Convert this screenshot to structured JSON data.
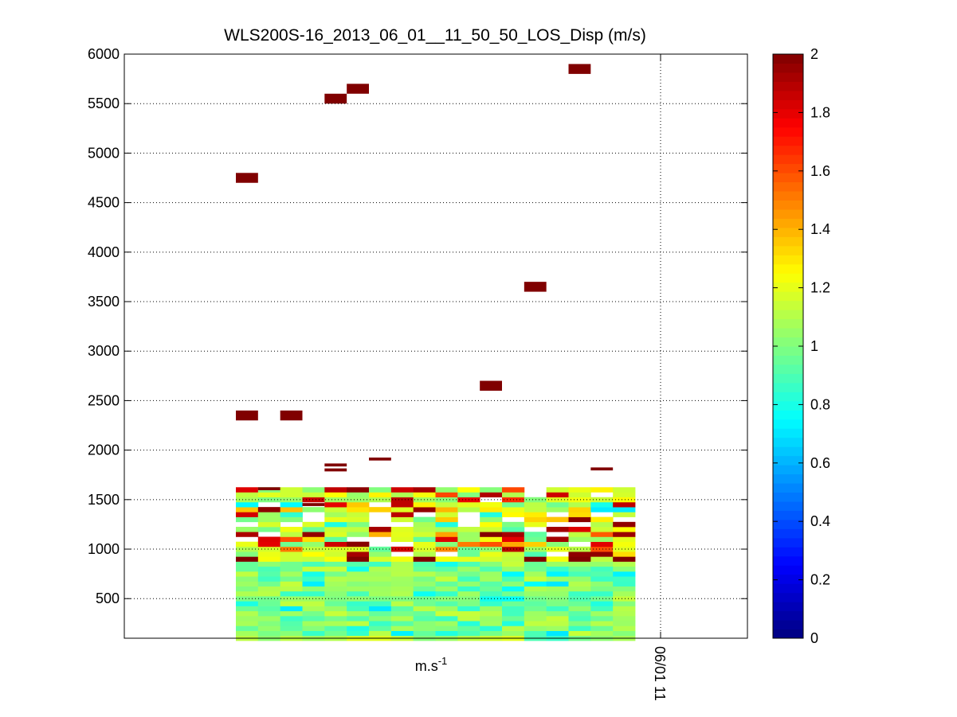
{
  "chart_data": {
    "type": "heatmap",
    "title": "WLS200S-16_2013_06_01__11_50_50_LOS_Disp (m/s)",
    "xlabel": "m.s-1",
    "xlabel_base": "m.s",
    "xlabel_sup": "-1",
    "ylabel": "",
    "ylim": [
      100,
      6000
    ],
    "yticks": [
      500,
      1000,
      1500,
      2000,
      2500,
      3000,
      3500,
      4000,
      4500,
      5000,
      5500,
      6000
    ],
    "xticks": [
      "06/01 11"
    ],
    "grid": true,
    "colorbar": {
      "colormap": "jet",
      "clim": [
        0,
        2
      ],
      "ticks": [
        0,
        0.2,
        0.4,
        0.6,
        0.8,
        1,
        1.2,
        1.4,
        1.6,
        1.8,
        2
      ]
    },
    "profiles": 18,
    "range_gate_m": 50,
    "outliers": [
      {
        "profile": 0,
        "altitude": 4750,
        "value": 2
      },
      {
        "profile": 0,
        "altitude": 2350,
        "value": 2
      },
      {
        "profile": 2,
        "altitude": 2350,
        "value": 2
      },
      {
        "profile": 4,
        "altitude": 5550,
        "value": 2
      },
      {
        "profile": 5,
        "altitude": 5650,
        "value": 2
      },
      {
        "profile": 11,
        "altitude": 2650,
        "value": 2
      },
      {
        "profile": 13,
        "altitude": 3650,
        "value": 2
      },
      {
        "profile": 15,
        "altitude": 5850,
        "value": 2
      }
    ]
  }
}
